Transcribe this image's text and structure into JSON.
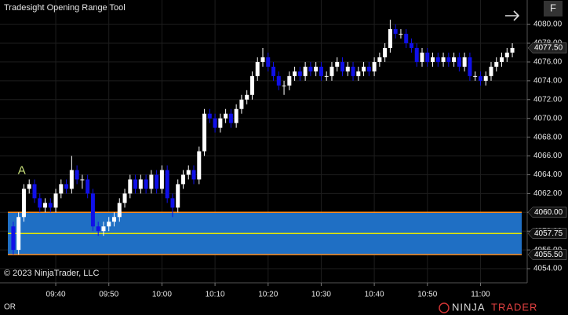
{
  "header": {
    "title": "Tradesight Opening Range Tool",
    "button": "F"
  },
  "chart_data": {
    "type": "candlestick",
    "x": [
      572,
      573,
      574,
      575,
      576,
      577,
      578,
      579,
      580,
      581,
      582,
      583,
      584,
      585,
      586,
      587,
      588,
      589,
      590,
      591,
      592,
      593,
      594,
      595,
      596,
      597,
      598,
      599,
      600,
      601,
      602,
      603,
      604,
      605,
      606,
      607,
      608,
      609,
      610,
      611,
      612,
      613,
      614,
      615,
      616,
      617,
      618,
      619,
      620,
      621,
      622,
      623,
      624,
      625,
      626,
      627,
      628,
      629,
      630,
      631,
      632,
      633,
      634,
      635,
      636,
      637,
      638,
      639,
      640,
      641,
      642,
      643,
      644,
      645,
      646,
      647,
      648,
      649,
      650,
      651,
      652,
      653,
      654,
      655,
      656,
      657,
      658,
      659,
      660,
      661,
      662,
      663,
      664,
      665,
      666
    ],
    "open": [
      4058.5,
      4056.0,
      4059.5,
      4062.5,
      4063.0,
      4061.5,
      4060.5,
      4061.0,
      4060.5,
      4062.0,
      4063.0,
      4062.5,
      4064.5,
      4063.5,
      4063.5,
      4062.0,
      4058.5,
      4058.0,
      4058.5,
      4059.0,
      4059.5,
      4061.0,
      4062.0,
      4063.5,
      4062.5,
      4063.5,
      4062.5,
      4064.0,
      4062.5,
      4064.5,
      4061.5,
      4060.5,
      4063.0,
      4064.0,
      4064.5,
      4063.5,
      4066.5,
      4070.5,
      4070.0,
      4069.0,
      4070.0,
      4070.5,
      4069.5,
      4071.0,
      4072.0,
      4072.5,
      4074.5,
      4076.0,
      4076.5,
      4075.5,
      4074.5,
      4073.5,
      4073.5,
      4074.5,
      4075.0,
      4074.5,
      4075.5,
      4075.0,
      4075.5,
      4074.5,
      4074.5,
      4075.5,
      4076.0,
      4075.0,
      4075.5,
      4074.5,
      4075.0,
      4075.5,
      4075.0,
      4076.0,
      4076.5,
      4077.5,
      4079.5,
      4079.0,
      4079.0,
      4078.0,
      4077.5,
      4076.0,
      4077.0,
      4076.0,
      4076.5,
      4076.0,
      4076.5,
      4076.0,
      4076.5,
      4075.5,
      4076.5,
      4074.5,
      4074.5,
      4074.0,
      4074.5,
      4075.5,
      4076.0,
      4076.5,
      4077.0
    ],
    "high": [
      4059.0,
      4060.0,
      4063.0,
      4063.5,
      4063.5,
      4062.0,
      4061.5,
      4061.5,
      4062.5,
      4063.5,
      4063.5,
      4066.0,
      4065.0,
      4064.0,
      4064.0,
      4062.5,
      4059.0,
      4059.0,
      4059.5,
      4060.0,
      4061.5,
      4062.5,
      4064.0,
      4064.0,
      4064.0,
      4064.0,
      4064.5,
      4064.5,
      4065.0,
      4065.0,
      4062.0,
      4063.5,
      4064.5,
      4065.0,
      4065.0,
      4067.0,
      4071.0,
      4071.0,
      4070.5,
      4070.5,
      4071.0,
      4071.0,
      4071.5,
      4072.5,
      4073.0,
      4075.0,
      4076.5,
      4077.5,
      4077.0,
      4076.0,
      4075.0,
      4074.0,
      4075.0,
      4075.5,
      4075.5,
      4076.0,
      4076.0,
      4076.0,
      4076.0,
      4075.0,
      4076.0,
      4076.5,
      4076.5,
      4076.0,
      4076.0,
      4075.5,
      4076.0,
      4076.0,
      4076.5,
      4077.0,
      4078.0,
      4080.5,
      4080.0,
      4079.5,
      4079.5,
      4078.5,
      4078.0,
      4077.5,
      4077.5,
      4077.0,
      4077.0,
      4077.0,
      4077.0,
      4077.0,
      4077.0,
      4077.0,
      4077.0,
      4075.0,
      4075.0,
      4075.0,
      4076.0,
      4076.5,
      4077.0,
      4077.5,
      4078.0
    ],
    "low": [
      4055.5,
      4055.5,
      4059.0,
      4062.0,
      4061.0,
      4060.0,
      4060.0,
      4060.0,
      4060.0,
      4061.5,
      4062.0,
      4062.0,
      4063.0,
      4062.5,
      4061.5,
      4058.0,
      4057.5,
      4057.5,
      4058.0,
      4058.5,
      4059.0,
      4060.5,
      4061.5,
      4062.0,
      4062.0,
      4062.0,
      4062.0,
      4062.0,
      4062.0,
      4061.0,
      4059.5,
      4060.0,
      4062.5,
      4063.5,
      4063.0,
      4063.0,
      4066.0,
      4069.5,
      4068.5,
      4068.5,
      4069.5,
      4069.0,
      4069.0,
      4070.5,
      4071.5,
      4072.0,
      4074.0,
      4075.5,
      4075.0,
      4074.0,
      4073.0,
      4072.5,
      4073.0,
      4074.0,
      4074.0,
      4074.0,
      4074.5,
      4074.5,
      4074.0,
      4074.0,
      4074.0,
      4075.0,
      4074.5,
      4074.5,
      4074.0,
      4074.0,
      4074.5,
      4074.5,
      4074.5,
      4075.5,
      4076.0,
      4077.0,
      4078.5,
      4078.5,
      4077.5,
      4077.0,
      4075.5,
      4075.5,
      4075.5,
      4075.5,
      4075.5,
      4075.5,
      4075.5,
      4075.5,
      4075.0,
      4075.0,
      4074.0,
      4074.0,
      4073.5,
      4073.5,
      4074.0,
      4075.0,
      4075.5,
      4076.0,
      4076.5
    ],
    "close": [
      4056.0,
      4059.5,
      4062.5,
      4063.0,
      4061.5,
      4060.5,
      4061.0,
      4060.5,
      4062.0,
      4063.0,
      4062.5,
      4064.5,
      4063.5,
      4063.5,
      4062.0,
      4058.5,
      4058.0,
      4058.5,
      4059.0,
      4059.5,
      4061.0,
      4062.0,
      4063.5,
      4062.5,
      4063.5,
      4062.5,
      4064.0,
      4062.5,
      4064.5,
      4061.5,
      4060.5,
      4063.0,
      4064.0,
      4064.5,
      4063.5,
      4066.5,
      4070.5,
      4070.0,
      4069.0,
      4070.0,
      4070.5,
      4069.5,
      4071.0,
      4072.0,
      4072.5,
      4074.5,
      4076.0,
      4076.5,
      4075.5,
      4074.5,
      4073.5,
      4073.5,
      4074.5,
      4075.0,
      4074.5,
      4075.5,
      4075.0,
      4075.5,
      4074.5,
      4074.5,
      4075.5,
      4076.0,
      4075.0,
      4075.5,
      4074.5,
      4075.0,
      4075.5,
      4075.0,
      4076.0,
      4076.5,
      4077.5,
      4079.5,
      4079.0,
      4079.0,
      4078.0,
      4077.5,
      4076.0,
      4077.0,
      4076.0,
      4076.5,
      4076.0,
      4076.5,
      4076.0,
      4076.5,
      4075.5,
      4076.5,
      4074.5,
      4074.5,
      4074.0,
      4074.5,
      4075.5,
      4076.0,
      4076.5,
      4077.0,
      4077.5
    ],
    "up_color": "#ffffff",
    "down_color": "#1010e8",
    "xlim": [
      569.5,
      668.8
    ],
    "xticks": [
      {
        "value": 580,
        "label": "09:40"
      },
      {
        "value": 590,
        "label": "09:50"
      },
      {
        "value": 600,
        "label": "10:00"
      },
      {
        "value": 610,
        "label": "10:10"
      },
      {
        "value": 620,
        "label": "10:20"
      },
      {
        "value": 630,
        "label": "10:30"
      },
      {
        "value": 640,
        "label": "10:40"
      },
      {
        "value": 650,
        "label": "10:50"
      },
      {
        "value": 660,
        "label": "11:00"
      }
    ],
    "ylim": [
      4052.5,
      4082.6
    ],
    "yticks": [
      {
        "value": 4054,
        "label": "4054.00"
      },
      {
        "value": 4056,
        "label": "4056.00"
      },
      {
        "value": 4058,
        "label": "4058.00"
      },
      {
        "value": 4060,
        "label": "4060.00"
      },
      {
        "value": 4062,
        "label": "4062.00"
      },
      {
        "value": 4064,
        "label": "4064.00"
      },
      {
        "value": 4066,
        "label": "4066.00"
      },
      {
        "value": 4068,
        "label": "4068.00"
      },
      {
        "value": 4070,
        "label": "4070.00"
      },
      {
        "value": 4072,
        "label": "4072.00"
      },
      {
        "value": 4074,
        "label": "4074.00"
      },
      {
        "value": 4076,
        "label": "4076.00"
      },
      {
        "value": 4078,
        "label": "4078.00"
      },
      {
        "value": 4080,
        "label": "4080.00"
      }
    ],
    "grid": true,
    "opening_range": {
      "high": {
        "value": 4060,
        "label": "4060.00"
      },
      "mid": {
        "value": 4057.75,
        "label": "4057.75"
      },
      "low": {
        "value": 4055.5,
        "label": "4055.50"
      },
      "fill_color": "#1f6fc4",
      "edge_color": "#ff8c1a",
      "mid_color": "#e8e800"
    },
    "last_price": {
      "value": 4077.5,
      "label": "4077.50"
    },
    "annotation": {
      "text": "A",
      "x": 573.6,
      "y": 4064.4,
      "color": "#c8e07a"
    },
    "copyright": "© 2023 NinjaTrader, LLC"
  },
  "footer": {
    "label": "OR",
    "logo_part1": "NINJA",
    "logo_part2": "TRADER"
  }
}
